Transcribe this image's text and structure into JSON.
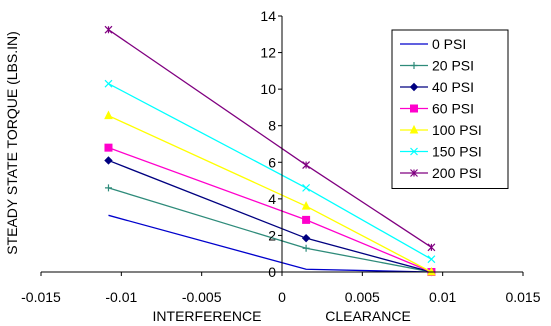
{
  "chart_data": {
    "type": "line",
    "title": "",
    "ylabel": "STEADY STATE TORQUE (LBS.IN)",
    "xlabel_parts": [
      "INTERFERENCE",
      "CLEARANCE"
    ],
    "xlim": [
      -0.015,
      0.015
    ],
    "ylim": [
      0,
      14
    ],
    "x_ticks": [
      -0.015,
      -0.01,
      -0.005,
      0,
      0.005,
      0.01,
      0.015
    ],
    "x_tick_labels": [
      "-0.015",
      "-0.01",
      "-0.005",
      "0",
      "0.005",
      "0.01",
      "0.015"
    ],
    "y_ticks": [
      0,
      2,
      4,
      6,
      8,
      10,
      12,
      14
    ],
    "y_tick_labels": [
      "0",
      "2",
      "4",
      "6",
      "8",
      "10",
      "12",
      "14"
    ],
    "grid": false,
    "legend_position": "top-right",
    "x": [
      -0.0108,
      0.0015,
      0.0093
    ],
    "series": [
      {
        "name": "0 PSI",
        "color": "#0000CC",
        "marker": "none",
        "values": [
          3.1,
          0.15,
          0.0
        ]
      },
      {
        "name": "20 PSI",
        "color": "#2E8B7A",
        "marker": "plus",
        "values": [
          4.6,
          1.3,
          0.0
        ]
      },
      {
        "name": "40 PSI",
        "color": "#000080",
        "marker": "diamond",
        "values": [
          6.1,
          1.85,
          0.0
        ]
      },
      {
        "name": "60 PSI",
        "color": "#FF00CC",
        "marker": "square",
        "values": [
          6.8,
          2.85,
          0.0
        ]
      },
      {
        "name": "100 PSI",
        "color": "#FFFF00",
        "marker": "triangle",
        "values": [
          8.55,
          3.6,
          0.0
        ]
      },
      {
        "name": "150 PSI",
        "color": "#00FFFF",
        "marker": "x",
        "values": [
          10.3,
          4.6,
          0.7
        ]
      },
      {
        "name": "200 PSI",
        "color": "#800080",
        "marker": "asterisk",
        "values": [
          13.25,
          5.85,
          1.35
        ]
      }
    ]
  }
}
